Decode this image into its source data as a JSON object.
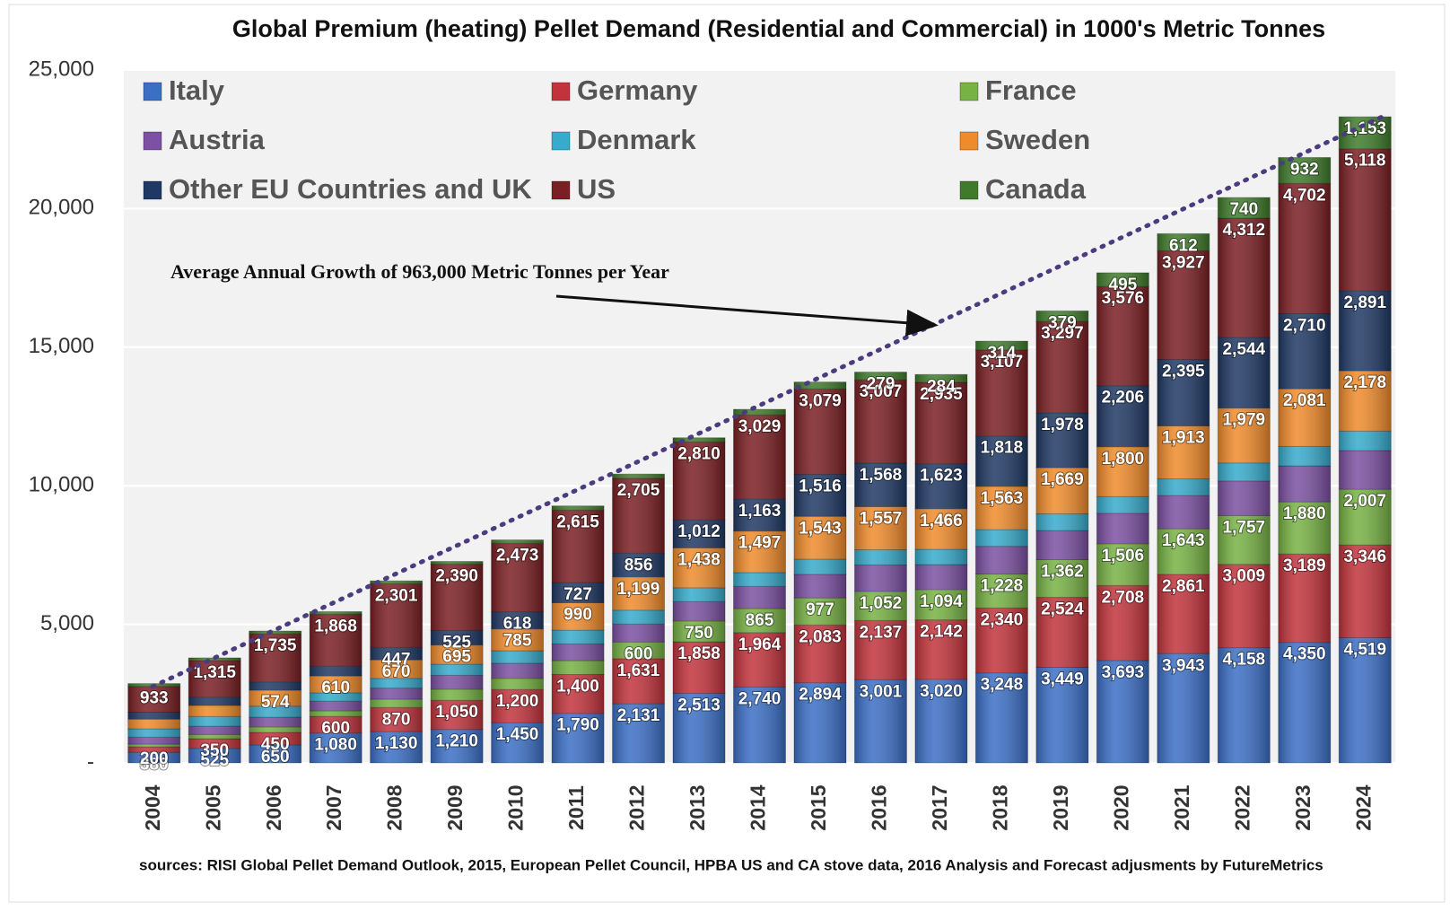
{
  "chart_data": {
    "type": "stacked_bar",
    "title": "Global Premium (heating) Pellet Demand (Residential and Commercial) in 1000's Metric Tonnes",
    "annotation": "Average  Annual  Growth  of 963,000 Metric Tonnes  per Year",
    "source": "sources: RISI Global Pellet Demand Outlook, 2015, European Pellet Council, HPBA US and CA stove data, 2016  Analysis and Forecast adjusments by FutureMetrics",
    "categories": [
      "2004",
      "2005",
      "2006",
      "2007",
      "2008",
      "2009",
      "2010",
      "2011",
      "2012",
      "2013",
      "2014",
      "2015",
      "2016",
      "2017",
      "2018",
      "2019",
      "2020",
      "2021",
      "2022",
      "2023",
      "2024"
    ],
    "ylim": [
      0,
      25000
    ],
    "yticks": [
      {
        "value": 0,
        "label": "-"
      },
      {
        "value": 5000,
        "label": "5,000"
      },
      {
        "value": 10000,
        "label": "10,000"
      },
      {
        "value": 15000,
        "label": "15,000"
      },
      {
        "value": 20000,
        "label": "20,000"
      },
      {
        "value": 25000,
        "label": "25,000"
      }
    ],
    "grid": true,
    "series": [
      {
        "name": "Italy",
        "color": "#3b6fc6",
        "values": [
          380,
          525,
          650,
          1080,
          1130,
          1210,
          1450,
          1790,
          2131,
          2513,
          2740,
          2894,
          3001,
          3020,
          3248,
          3449,
          3693,
          3943,
          4158,
          4350,
          4519
        ],
        "value_labels": [
          "380",
          "525",
          "650",
          "1,080",
          "1,130",
          "1,210",
          "1,450",
          "1,790",
          "2,131",
          "2,513",
          "2,740",
          "2,894",
          "3,001",
          "3,020",
          "3,248",
          "3,449",
          "3,693",
          "3,943",
          "4,158",
          "4,350",
          "4,519"
        ]
      },
      {
        "name": "Germany",
        "color": "#c2333c",
        "values": [
          200,
          350,
          450,
          600,
          870,
          1050,
          1200,
          1400,
          1631,
          1858,
          1964,
          2083,
          2137,
          2142,
          2340,
          2524,
          2708,
          2861,
          3009,
          3189,
          3346
        ],
        "value_labels": [
          "200",
          "350",
          "450",
          "600",
          "870",
          "1,050",
          "1,200",
          "1,400",
          "1,631",
          "1,858",
          "1,964",
          "2,083",
          "2,137",
          "2,142",
          "2,340",
          "2,524",
          "2,708",
          "2,861",
          "3,009",
          "3,189",
          "3,346"
        ]
      },
      {
        "name": "France",
        "color": "#77b244",
        "values": [
          100,
          150,
          200,
          200,
          300,
          400,
          400,
          500,
          600,
          750,
          865,
          977,
          1052,
          1094,
          1228,
          1362,
          1506,
          1643,
          1757,
          1880,
          2007
        ],
        "value_labels": [
          null,
          null,
          null,
          null,
          null,
          null,
          null,
          null,
          "600",
          "750",
          "865",
          "977",
          "1,052",
          "1,094",
          "1,228",
          "1,362",
          "1,506",
          "1,643",
          "1,757",
          "1,880",
          "2,007"
        ]
      },
      {
        "name": "Austria",
        "color": "#7c50a2",
        "values": [
          250,
          300,
          350,
          350,
          400,
          500,
          550,
          600,
          650,
          700,
          800,
          850,
          950,
          900,
          1000,
          1050,
          1100,
          1200,
          1250,
          1300,
          1400
        ]
      },
      {
        "name": "Denmark",
        "color": "#37abcc",
        "values": [
          300,
          350,
          400,
          300,
          350,
          400,
          450,
          500,
          500,
          500,
          500,
          550,
          550,
          550,
          600,
          600,
          600,
          600,
          650,
          700,
          700
        ]
      },
      {
        "name": "Sweden",
        "color": "#f08b2b",
        "values": [
          350,
          400,
          574,
          610,
          670,
          695,
          785,
          990,
          1199,
          1438,
          1497,
          1543,
          1557,
          1466,
          1563,
          1669,
          1800,
          1913,
          1979,
          2081,
          2178
        ],
        "value_labels": [
          null,
          null,
          "574",
          "610",
          "670",
          "695",
          "785",
          "990",
          "1,199",
          "1,438",
          "1,497",
          "1,543",
          "1,557",
          "1,466",
          "1,563",
          "1,669",
          "1,800",
          "1,913",
          "1,979",
          "2,081",
          "2,178"
        ]
      },
      {
        "name": "Other EU Countries and UK",
        "color": "#1f3864",
        "values": [
          250,
          300,
          300,
          350,
          447,
          525,
          618,
          727,
          856,
          1012,
          1163,
          1516,
          1568,
          1623,
          1818,
          1978,
          2206,
          2395,
          2544,
          2710,
          2891
        ],
        "value_labels": [
          null,
          null,
          null,
          null,
          "447",
          "525",
          "618",
          "727",
          "856",
          "1,012",
          "1,163",
          "1,516",
          "1,568",
          "1,623",
          "1,818",
          "1,978",
          "2,206",
          "2,395",
          "2,544",
          "2,710",
          "2,891"
        ]
      },
      {
        "name": "US",
        "color": "#7a1f23",
        "values": [
          933,
          1315,
          1735,
          1868,
          2301,
          2390,
          2473,
          2615,
          2705,
          2810,
          3029,
          3079,
          3007,
          2935,
          3107,
          3297,
          3576,
          3927,
          4312,
          4702,
          5118
        ],
        "value_labels": [
          "933",
          "1,315",
          "1,735",
          "1,868",
          "2,301",
          "2,390",
          "2,473",
          "2,615",
          "2,705",
          "2,810",
          "3,029",
          "3,079",
          "3,007",
          "2,935",
          "3,107",
          "3,297",
          "3,576",
          "3,927",
          "4,312",
          "4,702",
          "5,118"
        ]
      },
      {
        "name": "Canada",
        "color": "#3f7b2b",
        "values": [
          100,
          100,
          100,
          100,
          100,
          100,
          120,
          150,
          150,
          150,
          200,
          250,
          279,
          284,
          314,
          379,
          495,
          612,
          740,
          932,
          1153
        ],
        "value_labels": [
          null,
          null,
          null,
          null,
          null,
          null,
          null,
          null,
          null,
          null,
          null,
          null,
          "279",
          "284",
          "314",
          "379",
          "495",
          "612",
          "740",
          "932",
          "1,153"
        ]
      }
    ]
  }
}
